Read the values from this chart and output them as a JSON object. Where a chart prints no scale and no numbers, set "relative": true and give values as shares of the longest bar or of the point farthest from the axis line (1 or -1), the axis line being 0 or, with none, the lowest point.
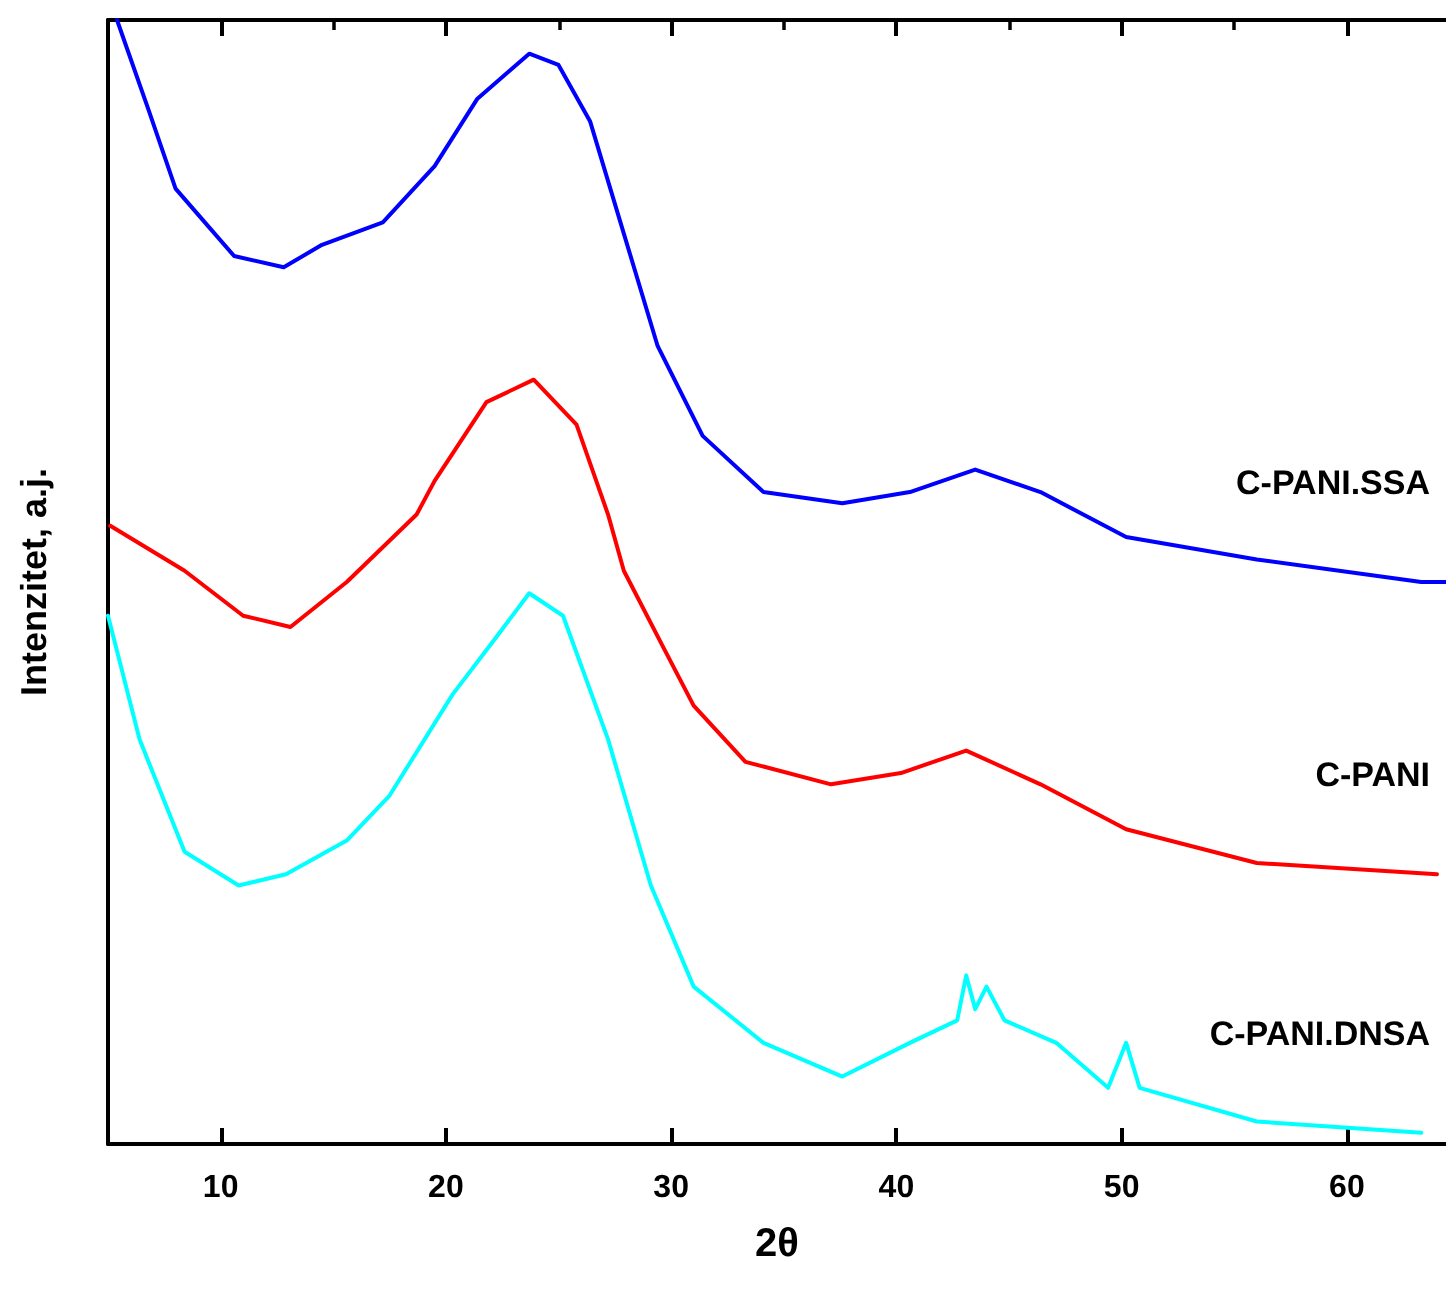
{
  "chart_data": {
    "type": "line",
    "relative": true,
    "xlabel": "2θ",
    "ylabel": "Intenzitet, a.j.",
    "xlim": [
      5,
      64.4
    ],
    "xticks": [
      10,
      20,
      30,
      40,
      50,
      60
    ],
    "grid": false,
    "legend": false,
    "marker": "none",
    "line_style": "solid",
    "series": [
      {
        "name": "C-PANI.SSA",
        "color": "#0000ff",
        "x": [
          5.4,
          6.8,
          8.0,
          9.3,
          10.6,
          12.8,
          14.5,
          17.2,
          19.5,
          21.4,
          23.7,
          25.0,
          26.4,
          27.9,
          29.4,
          31.4,
          34.1,
          37.6,
          40.6,
          43.5,
          46.4,
          50.2,
          56.0,
          63.3,
          64.4
        ],
        "values": [
          1.0,
          0.92,
          0.85,
          0.82,
          0.79,
          0.78,
          0.8,
          0.82,
          0.87,
          0.93,
          0.97,
          0.96,
          0.91,
          0.81,
          0.71,
          0.63,
          0.58,
          0.57,
          0.58,
          0.6,
          0.58,
          0.54,
          0.52,
          0.5,
          0.5
        ]
      },
      {
        "name": "C-PANI",
        "color": "#ff0000",
        "x": [
          5.1,
          8.4,
          11.0,
          13.1,
          15.6,
          18.7,
          19.5,
          21.8,
          23.9,
          25.8,
          27.2,
          27.9,
          29.7,
          31.0,
          33.3,
          37.1,
          40.2,
          43.1,
          46.4,
          50.2,
          56.0,
          64.0
        ],
        "values": [
          0.55,
          0.51,
          0.47,
          0.46,
          0.5,
          0.56,
          0.59,
          0.66,
          0.68,
          0.64,
          0.56,
          0.51,
          0.44,
          0.39,
          0.34,
          0.32,
          0.33,
          0.35,
          0.32,
          0.28,
          0.25,
          0.24
        ]
      },
      {
        "name": "C-PANI.DNSA",
        "color": "#00ffff",
        "x": [
          5.0,
          6.4,
          8.4,
          10.8,
          12.9,
          15.6,
          17.5,
          20.3,
          22.2,
          23.7,
          25.2,
          27.2,
          29.1,
          31.0,
          34.1,
          37.6,
          40.6,
          42.7,
          43.1,
          43.5,
          44.0,
          44.8,
          47.1,
          49.4,
          50.2,
          50.8,
          56.0,
          63.3
        ],
        "values": [
          0.47,
          0.36,
          0.26,
          0.23,
          0.24,
          0.27,
          0.31,
          0.4,
          0.45,
          0.49,
          0.47,
          0.36,
          0.23,
          0.14,
          0.09,
          0.06,
          0.09,
          0.11,
          0.15,
          0.12,
          0.14,
          0.11,
          0.09,
          0.05,
          0.09,
          0.05,
          0.02,
          0.01
        ]
      }
    ]
  }
}
